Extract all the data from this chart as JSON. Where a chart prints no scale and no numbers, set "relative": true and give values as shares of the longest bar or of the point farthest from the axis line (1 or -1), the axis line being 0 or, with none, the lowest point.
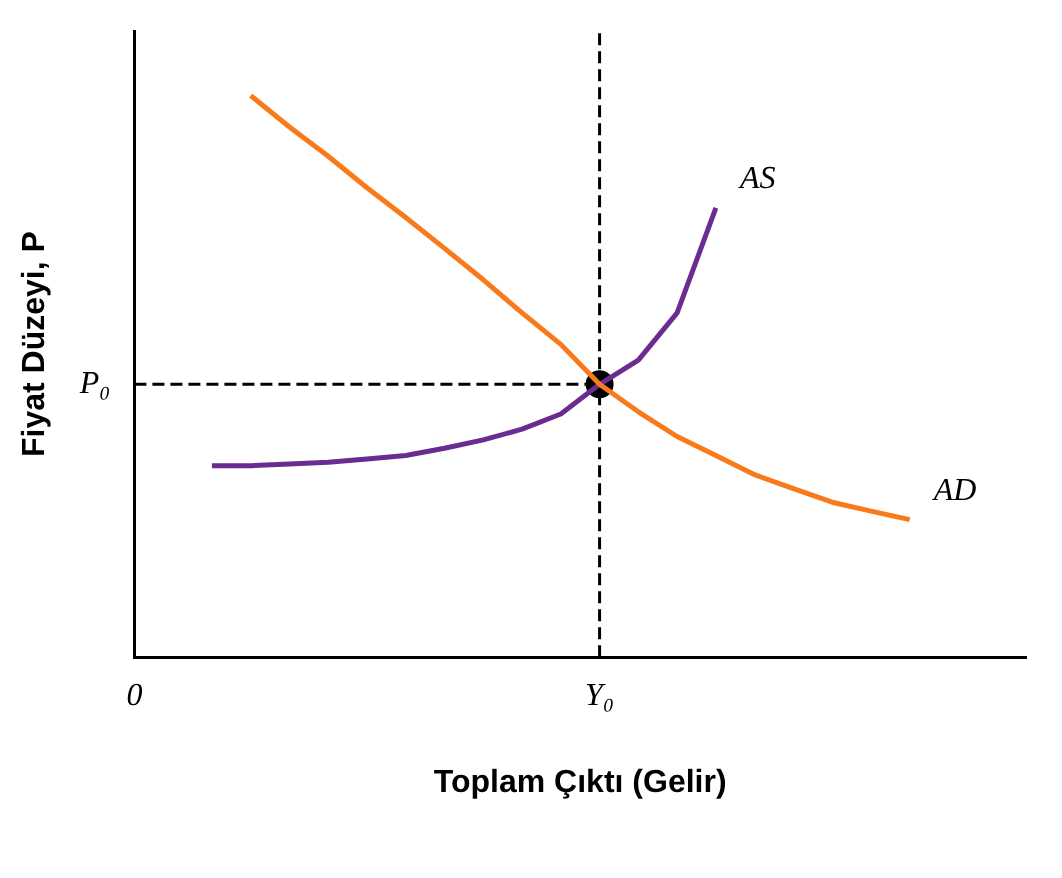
{
  "chart_data": {
    "type": "line",
    "relative": true,
    "xlabel": "Toplam Çıktı (Gelir)",
    "ylabel": "Fiyat Düzeyi, P",
    "categories": [
      "0",
      null,
      null,
      null,
      null,
      null,
      null,
      null,
      null,
      null,
      null,
      null,
      "Y₀",
      null,
      null,
      null,
      null,
      null,
      null,
      null,
      null,
      null,
      null,
      null
    ],
    "legend": false,
    "marker": "none",
    "line_style": "solid",
    "series": [
      {
        "name": "AD",
        "color": "#f97a1a",
        "values": [
          null,
          null,
          null,
          1,
          0.944,
          0.892,
          0.836,
          0.783,
          0.728,
          0.672,
          0.613,
          0.557,
          0.486,
          0.437,
          0.393,
          0.359,
          0.325,
          0.3,
          0.276,
          0.26,
          0.245,
          null,
          null,
          null
        ]
      },
      {
        "name": "AS",
        "color": "#6a2c91",
        "values": [
          null,
          null,
          0.341,
          0.341,
          0.344,
          0.347,
          0.353,
          0.359,
          0.372,
          0.387,
          0.406,
          0.433,
          0.486,
          0.529,
          0.613,
          0.8,
          null,
          null,
          null,
          null,
          null,
          null,
          null,
          null
        ]
      },
      {
        "type": "scatter",
        "marker": "circle",
        "color": "#000000",
        "values": [
          null,
          null,
          null,
          null,
          null,
          null,
          null,
          null,
          null,
          null,
          null,
          null,
          0.486,
          null,
          null,
          null,
          null,
          null,
          null,
          null,
          null,
          null,
          null,
          null
        ]
      }
    ],
    "ref_lines": [
      {
        "axis": "x",
        "value": "Y₀",
        "line_style": "dashed",
        "color": "#000000"
      },
      {
        "axis": "y",
        "value": 0.486,
        "label": "P₀",
        "line_style": "dashed",
        "color": "#000000"
      }
    ]
  }
}
